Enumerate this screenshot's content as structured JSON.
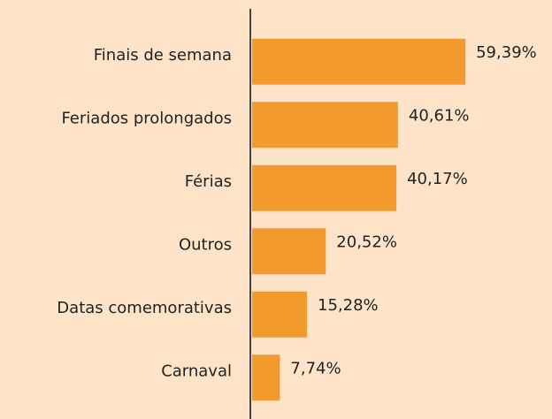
{
  "chart_data": {
    "type": "bar",
    "orientation": "horizontal",
    "categories": [
      "Finais de semana",
      "Feriados prolongados",
      "Férias",
      "Outros",
      "Datas comemorativas",
      "Carnaval"
    ],
    "values": [
      59.39,
      40.61,
      40.17,
      20.52,
      15.28,
      7.74
    ],
    "value_labels": [
      "59,39%",
      "40,61%",
      "40,17%",
      "20,52%",
      "15,28%",
      "7,74%"
    ],
    "color": "#f39a2e"
  }
}
